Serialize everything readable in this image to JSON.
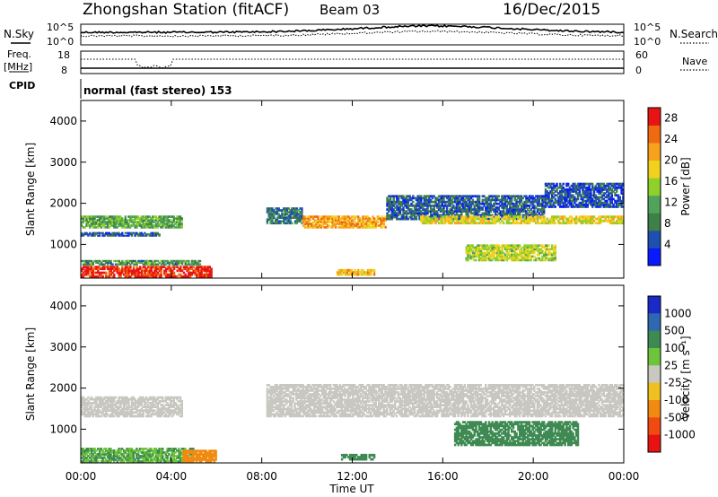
{
  "header": {
    "station": "Zhongshan Station (fitACF)",
    "beam": "Beam 03",
    "date": "16/Dec/2015"
  },
  "sky_panel": {
    "left_label": "N.Sky",
    "right_label": "N.Search",
    "left_ticks": [
      "10^5",
      "10^0"
    ],
    "right_ticks": [
      "10^5",
      "10^0"
    ]
  },
  "freq_panel": {
    "left_label": "Freq.",
    "left_unit": "[MHz]",
    "right_label": "Nave",
    "left_ticks": [
      "18",
      "8"
    ],
    "right_ticks": [
      "60",
      "0"
    ]
  },
  "cpid": {
    "label": "CPID",
    "value": "normal (fast stereo) 153"
  },
  "x_axis": {
    "label": "Time UT",
    "ticks": [
      "00:00",
      "04:00",
      "08:00",
      "12:00",
      "16:00",
      "20:00",
      "00:00"
    ]
  },
  "colors": {
    "power_scale": [
      "#0a1aff",
      "#1f4fb0",
      "#3f7f48",
      "#4fa35a",
      "#8fd02a",
      "#f0d21e",
      "#f7a21c",
      "#f06a12",
      "#e81414"
    ],
    "velocity_scale": [
      "#1a2ac8",
      "#2e68b0",
      "#3e8a52",
      "#6ec43a",
      "#c8c8c0",
      "#f0c020",
      "#f08a10",
      "#f04a10",
      "#e81212"
    ]
  },
  "chart_data": [
    {
      "type": "heatmap",
      "title": "Power",
      "ylabel": "Slant Range [km]",
      "yticks": [
        "1000",
        "2000",
        "3000",
        "4000"
      ],
      "ylim": [
        180,
        4500
      ],
      "xlim": [
        "00:00",
        "24:00"
      ],
      "colorbar": {
        "label": "Power [dB]",
        "ticks": [
          "4",
          "8",
          "12",
          "16",
          "20",
          "24",
          "28"
        ],
        "range": [
          0,
          30
        ]
      },
      "regions": [
        {
          "t0": 0.0,
          "t1": 5.8,
          "r0": 200,
          "r1": 480,
          "value": 28
        },
        {
          "t0": 0.0,
          "t1": 5.3,
          "r0": 500,
          "r1": 620,
          "value": 10
        },
        {
          "t0": 0.0,
          "t1": 3.5,
          "r0": 1200,
          "r1": 1300,
          "value": 6
        },
        {
          "t0": 0.0,
          "t1": 4.5,
          "r0": 1400,
          "r1": 1700,
          "value": 12
        },
        {
          "t0": 8.2,
          "t1": 9.8,
          "r0": 1500,
          "r1": 1900,
          "value": 8
        },
        {
          "t0": 9.8,
          "t1": 13.5,
          "r0": 1400,
          "r1": 1700,
          "value": 22
        },
        {
          "t0": 13.5,
          "t1": 20.5,
          "r0": 1600,
          "r1": 2200,
          "value": 6
        },
        {
          "t0": 15.0,
          "t1": 24.0,
          "r0": 1500,
          "r1": 1700,
          "value": 18
        },
        {
          "t0": 17.0,
          "t1": 21.0,
          "r0": 600,
          "r1": 1000,
          "value": 16
        },
        {
          "t0": 11.3,
          "t1": 13.0,
          "r0": 250,
          "r1": 400,
          "value": 20
        },
        {
          "t0": 20.5,
          "t1": 24.0,
          "r0": 1900,
          "r1": 2500,
          "value": 5
        }
      ]
    },
    {
      "type": "heatmap",
      "title": "Velocity",
      "ylabel": "Slant Range [km]",
      "yticks": [
        "1000",
        "2000",
        "3000",
        "4000"
      ],
      "ylim": [
        180,
        4500
      ],
      "xlim": [
        "00:00",
        "24:00"
      ],
      "colorbar": {
        "label": "Velocity [m s⁻¹]",
        "ticks": [
          "1000",
          "500",
          "100",
          "25",
          "-25",
          "-100",
          "-500",
          "-1000"
        ]
      },
      "regions": [
        {
          "t0": 0.0,
          "t1": 5.0,
          "r0": 200,
          "r1": 550,
          "value": 100
        },
        {
          "t0": 4.5,
          "t1": 6.0,
          "r0": 200,
          "r1": 500,
          "value": -300
        },
        {
          "t0": 0.0,
          "t1": 4.5,
          "r0": 1300,
          "r1": 1800,
          "value": 0
        },
        {
          "t0": 8.2,
          "t1": 24.0,
          "r0": 1300,
          "r1": 2100,
          "value": 0
        },
        {
          "t0": 16.5,
          "t1": 22.0,
          "r0": 600,
          "r1": 1200,
          "value": 300
        },
        {
          "t0": 11.5,
          "t1": 13.0,
          "r0": 250,
          "r1": 400,
          "value": 150
        }
      ]
    }
  ]
}
